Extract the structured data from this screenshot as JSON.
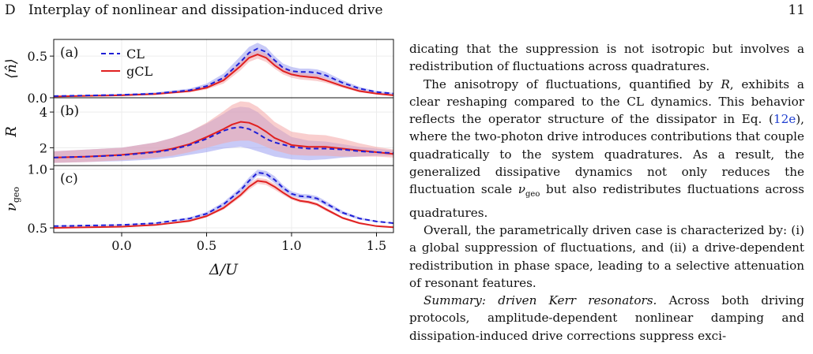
{
  "header": {
    "section_label": "D",
    "section_title": "Interplay of nonlinear and dissipation-induced drive",
    "page_number": "11"
  },
  "figure": {
    "legend": [
      {
        "label": "CL",
        "color": "#1f1fd6",
        "style": "dashed"
      },
      {
        "label": "gCL",
        "color": "#e02020",
        "style": "solid"
      }
    ],
    "colors": {
      "cl": "#1f1fd6",
      "gcl": "#e02020",
      "cl_band": "#9a9ff0",
      "gcl_band": "#f4a6a6"
    },
    "xlabel": "Δ/U",
    "x_ticks": [
      "0.0",
      "0.5",
      "1.0",
      "1.5"
    ]
  },
  "chart_data": [
    {
      "type": "line",
      "panel": "(a)",
      "ylabel": "⟨n̂⟩",
      "xlim": [
        -0.4,
        1.6
      ],
      "ylim": [
        0.0,
        0.7
      ],
      "y_ticks": [
        "0.0",
        "0.5"
      ],
      "x": [
        -0.4,
        0.0,
        0.2,
        0.4,
        0.5,
        0.6,
        0.7,
        0.75,
        0.8,
        0.85,
        0.9,
        0.95,
        1.0,
        1.05,
        1.1,
        1.15,
        1.2,
        1.3,
        1.4,
        1.5,
        1.6
      ],
      "series": [
        {
          "name": "CL",
          "values": [
            0.02,
            0.035,
            0.05,
            0.09,
            0.14,
            0.24,
            0.43,
            0.54,
            0.59,
            0.55,
            0.45,
            0.36,
            0.32,
            0.31,
            0.31,
            0.3,
            0.27,
            0.18,
            0.11,
            0.07,
            0.05
          ],
          "band_upper": [
            0.025,
            0.045,
            0.065,
            0.11,
            0.17,
            0.29,
            0.5,
            0.61,
            0.66,
            0.61,
            0.5,
            0.41,
            0.37,
            0.35,
            0.35,
            0.34,
            0.31,
            0.21,
            0.13,
            0.08,
            0.06
          ],
          "band_lower": [
            0.015,
            0.03,
            0.04,
            0.075,
            0.12,
            0.2,
            0.37,
            0.47,
            0.52,
            0.48,
            0.39,
            0.31,
            0.27,
            0.26,
            0.26,
            0.25,
            0.23,
            0.15,
            0.09,
            0.055,
            0.04
          ]
        },
        {
          "name": "gCL",
          "values": [
            0.015,
            0.03,
            0.045,
            0.08,
            0.12,
            0.21,
            0.38,
            0.48,
            0.52,
            0.48,
            0.39,
            0.32,
            0.28,
            0.26,
            0.25,
            0.24,
            0.21,
            0.14,
            0.08,
            0.05,
            0.03
          ],
          "band_upper": [
            0.02,
            0.04,
            0.055,
            0.095,
            0.145,
            0.25,
            0.43,
            0.53,
            0.57,
            0.53,
            0.44,
            0.36,
            0.32,
            0.3,
            0.29,
            0.28,
            0.24,
            0.16,
            0.1,
            0.06,
            0.04
          ],
          "band_lower": [
            0.01,
            0.022,
            0.035,
            0.065,
            0.1,
            0.17,
            0.33,
            0.43,
            0.47,
            0.43,
            0.35,
            0.28,
            0.24,
            0.22,
            0.21,
            0.2,
            0.18,
            0.12,
            0.065,
            0.04,
            0.025
          ]
        }
      ]
    },
    {
      "type": "line",
      "panel": "(b)",
      "ylabel": "R",
      "xlim": [
        -0.4,
        1.6
      ],
      "ylim": [
        1.0,
        4.8
      ],
      "y_ticks": [
        "2",
        "4"
      ],
      "x": [
        -0.4,
        -0.2,
        0.0,
        0.2,
        0.3,
        0.4,
        0.5,
        0.6,
        0.65,
        0.7,
        0.75,
        0.8,
        0.85,
        0.9,
        1.0,
        1.1,
        1.2,
        1.3,
        1.4,
        1.5,
        1.6
      ],
      "series": [
        {
          "name": "CL",
          "values": [
            1.45,
            1.5,
            1.58,
            1.75,
            1.9,
            2.15,
            2.5,
            2.95,
            3.1,
            3.15,
            3.05,
            2.8,
            2.5,
            2.3,
            2.05,
            1.95,
            1.95,
            1.9,
            1.8,
            1.75,
            1.7
          ],
          "band_upper": [
            1.8,
            1.9,
            2.0,
            2.3,
            2.55,
            2.9,
            3.35,
            3.9,
            4.2,
            4.3,
            4.25,
            4.0,
            3.6,
            3.2,
            2.6,
            2.4,
            2.35,
            2.2,
            2.05,
            1.95,
            1.85
          ],
          "band_lower": [
            1.15,
            1.2,
            1.25,
            1.35,
            1.45,
            1.6,
            1.75,
            1.95,
            2.0,
            2.05,
            1.95,
            1.8,
            1.65,
            1.5,
            1.35,
            1.3,
            1.35,
            1.45,
            1.5,
            1.55,
            1.55
          ]
        },
        {
          "name": "gCL",
          "values": [
            1.45,
            1.5,
            1.6,
            1.78,
            1.95,
            2.2,
            2.6,
            3.05,
            3.3,
            3.45,
            3.4,
            3.2,
            2.9,
            2.55,
            2.15,
            2.05,
            2.05,
            1.95,
            1.85,
            1.75,
            1.65
          ],
          "band_upper": [
            1.8,
            1.9,
            2.0,
            2.3,
            2.55,
            2.9,
            3.4,
            4.05,
            4.4,
            4.6,
            4.55,
            4.3,
            3.9,
            3.45,
            2.9,
            2.75,
            2.7,
            2.5,
            2.25,
            2.05,
            1.9
          ],
          "band_lower": [
            1.15,
            1.2,
            1.3,
            1.45,
            1.55,
            1.75,
            2.0,
            2.25,
            2.35,
            2.4,
            2.4,
            2.25,
            2.05,
            1.85,
            1.6,
            1.55,
            1.55,
            1.5,
            1.5,
            1.5,
            1.45
          ]
        }
      ]
    },
    {
      "type": "line",
      "panel": "(c)",
      "ylabel": "ν_geo",
      "xlim": [
        -0.4,
        1.6
      ],
      "ylim": [
        0.46,
        1.03
      ],
      "y_ticks": [
        "0.5",
        "1.0"
      ],
      "x": [
        -0.4,
        -0.2,
        0.0,
        0.2,
        0.4,
        0.5,
        0.6,
        0.7,
        0.75,
        0.8,
        0.85,
        0.9,
        0.95,
        1.0,
        1.05,
        1.1,
        1.15,
        1.2,
        1.3,
        1.4,
        1.5,
        1.6
      ],
      "series": [
        {
          "name": "CL",
          "values": [
            0.515,
            0.52,
            0.525,
            0.54,
            0.58,
            0.62,
            0.7,
            0.82,
            0.9,
            0.97,
            0.96,
            0.91,
            0.84,
            0.79,
            0.77,
            0.765,
            0.75,
            0.71,
            0.63,
            0.58,
            0.555,
            0.54
          ],
          "band_upper": [
            0.52,
            0.525,
            0.53,
            0.545,
            0.59,
            0.635,
            0.72,
            0.845,
            0.93,
            0.995,
            0.985,
            0.94,
            0.865,
            0.81,
            0.79,
            0.785,
            0.77,
            0.73,
            0.645,
            0.59,
            0.56,
            0.545
          ],
          "band_lower": [
            0.51,
            0.515,
            0.52,
            0.535,
            0.57,
            0.605,
            0.68,
            0.795,
            0.87,
            0.945,
            0.935,
            0.88,
            0.815,
            0.77,
            0.75,
            0.745,
            0.73,
            0.69,
            0.615,
            0.57,
            0.55,
            0.535
          ]
        },
        {
          "name": "gCL",
          "values": [
            0.5,
            0.505,
            0.51,
            0.525,
            0.56,
            0.6,
            0.67,
            0.78,
            0.85,
            0.9,
            0.89,
            0.85,
            0.8,
            0.755,
            0.73,
            0.72,
            0.7,
            0.66,
            0.585,
            0.54,
            0.515,
            0.505
          ],
          "band_upper": [
            0.505,
            0.51,
            0.515,
            0.53,
            0.57,
            0.61,
            0.685,
            0.8,
            0.875,
            0.925,
            0.915,
            0.875,
            0.82,
            0.77,
            0.745,
            0.735,
            0.715,
            0.675,
            0.595,
            0.55,
            0.52,
            0.51
          ],
          "band_lower": [
            0.495,
            0.5,
            0.505,
            0.52,
            0.55,
            0.59,
            0.655,
            0.76,
            0.825,
            0.875,
            0.865,
            0.825,
            0.78,
            0.74,
            0.715,
            0.705,
            0.685,
            0.645,
            0.575,
            0.53,
            0.51,
            0.5
          ]
        }
      ]
    }
  ],
  "body": {
    "p1": "dicating that the suppression is not isotropic but involves a redistribution of fluctuations across quadratures.",
    "p2_a": "The anisotropy of fluctuations, quantified by ",
    "p2_R": "R",
    "p2_b": ", exhibits a clear reshaping compared to the CL dynamics. This behavior reflects the operator structure of the dissipator in Eq. (",
    "p2_ref": "12e",
    "p2_c": "), where the two-photon drive introduces contributions that couple quadratically to the system quadratures. As a result, the generalized dissipative dynamics not only reduces the fluctuation scale ",
    "p2_nu": "ν",
    "p2_nu_sub": "geo",
    "p2_d": " but also redistributes fluctuations across quadratures.",
    "p3": "Overall, the parametrically driven case is characterized by: (i) a global suppression of fluctuations, and (ii) a drive-dependent redistribution in phase space, leading to a selective attenuation of resonant features.",
    "p4_title": "Summary: driven Kerr resonators.",
    "p4_text": " Across both driving protocols, amplitude-dependent nonlinear damping and dissipation-induced drive corrections suppress exci-"
  }
}
